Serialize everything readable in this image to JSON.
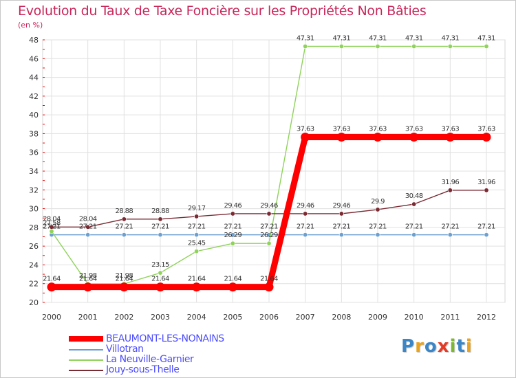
{
  "title": "Evolution du Taux de Taxe Foncière sur les Propriétés Non Bâties",
  "subtitle": "(en %)",
  "logo": [
    "P",
    "r",
    "o",
    "x",
    "i",
    "t",
    "i"
  ],
  "logo_colors": [
    "#3b86c7",
    "#e8a320",
    "#3b86c7",
    "#e33b26",
    "#7cb82f",
    "#3b86c7",
    "#e8a320"
  ],
  "chart_data": {
    "type": "line",
    "title": "Evolution du Taux de Taxe Foncière sur les Propriétés Non Bâties",
    "ylabel": "(en %)",
    "xlabel": "",
    "ylim": [
      20,
      48
    ],
    "yticks": [
      20,
      22,
      24,
      26,
      28,
      30,
      32,
      34,
      36,
      38,
      40,
      42,
      44,
      46,
      48
    ],
    "categories": [
      "2000",
      "2001",
      "2002",
      "2003",
      "2004",
      "2005",
      "2006",
      "2007",
      "2008",
      "2009",
      "2010",
      "2011",
      "2012"
    ],
    "grid": true,
    "legend_position": "bottom-left",
    "series": [
      {
        "name": "BEAUMONT-LES-NONAINS",
        "color": "#ff0000",
        "label_color": "#4d4dff",
        "width": "thick",
        "values": [
          21.64,
          21.64,
          21.64,
          21.64,
          21.64,
          21.64,
          21.64,
          37.63,
          37.63,
          37.63,
          37.63,
          37.63,
          37.63
        ],
        "labels": [
          "21.64",
          "21.64",
          "21.64",
          "21.64",
          "21.64",
          "21.64",
          "21.64",
          "37.63",
          "37.63",
          "37.63",
          "37.63",
          "37.63",
          "37.63"
        ]
      },
      {
        "name": "Villotran",
        "color": "#6ca0d0",
        "label_color": "#4d4dff",
        "width": "thin",
        "values": [
          27.21,
          27.21,
          27.21,
          27.21,
          27.21,
          27.21,
          27.21,
          27.21,
          27.21,
          27.21,
          27.21,
          27.21,
          27.21
        ],
        "labels": [
          "27.21",
          "27.21",
          "27.21",
          "27.21",
          "27.21",
          "27.21",
          "27.21",
          "27.21",
          "27.21",
          "27.21",
          "27.21",
          "27.21",
          "27.21"
        ]
      },
      {
        "name": "La Neuville-Garnier",
        "color": "#8fd35a",
        "label_color": "#4d4dff",
        "width": "thin",
        "values": [
          27.58,
          21.98,
          21.98,
          23.15,
          25.45,
          26.29,
          26.29,
          47.31,
          47.31,
          47.31,
          47.31,
          47.31,
          47.31
        ],
        "labels": [
          "27.58",
          "21.98",
          "21.98",
          "23.15",
          "25.45",
          "26.29",
          "26.29",
          "47.31",
          "47.31",
          "47.31",
          "47.31",
          "47.31",
          "47.31"
        ]
      },
      {
        "name": "Jouy-sous-Thelle",
        "color": "#7a2a32",
        "label_color": "#4d4dff",
        "width": "thin",
        "values": [
          28.04,
          28.04,
          28.88,
          28.88,
          29.17,
          29.46,
          29.46,
          29.46,
          29.46,
          29.9,
          30.48,
          31.96,
          31.96
        ],
        "labels": [
          "28.04",
          "28.04",
          "28.88",
          "28.88",
          "29.17",
          "29.46",
          "29.46",
          "29.46",
          "29.46",
          "29.9",
          "30.48",
          "31.96",
          "31.96"
        ]
      }
    ]
  }
}
